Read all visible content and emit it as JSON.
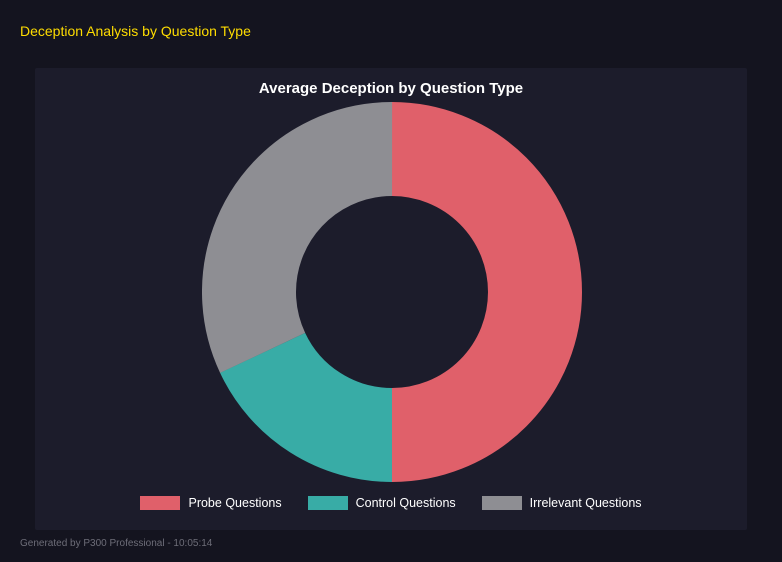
{
  "header": {
    "title": "Deception Analysis by Question Type",
    "title_color": "#ffdd00"
  },
  "footer": {
    "text": "Generated by P300 Professional - 10:05:14"
  },
  "chart_data": {
    "type": "pie",
    "donut_hole_ratio": 0.51,
    "title": "Average Deception by Question Type",
    "labels": [
      "Probe Questions",
      "Control Questions",
      "Irrelevant Questions"
    ],
    "values": [
      50,
      18,
      32
    ],
    "values_note": "percent of donut, estimated from arc angles",
    "colors": [
      "#e0606a",
      "#38aca6",
      "#8e8e93"
    ],
    "start_angle_deg": -90,
    "direction": "clockwise",
    "legend_position": "bottom",
    "background": "#1c1c2b",
    "page_background": "#14141f"
  }
}
